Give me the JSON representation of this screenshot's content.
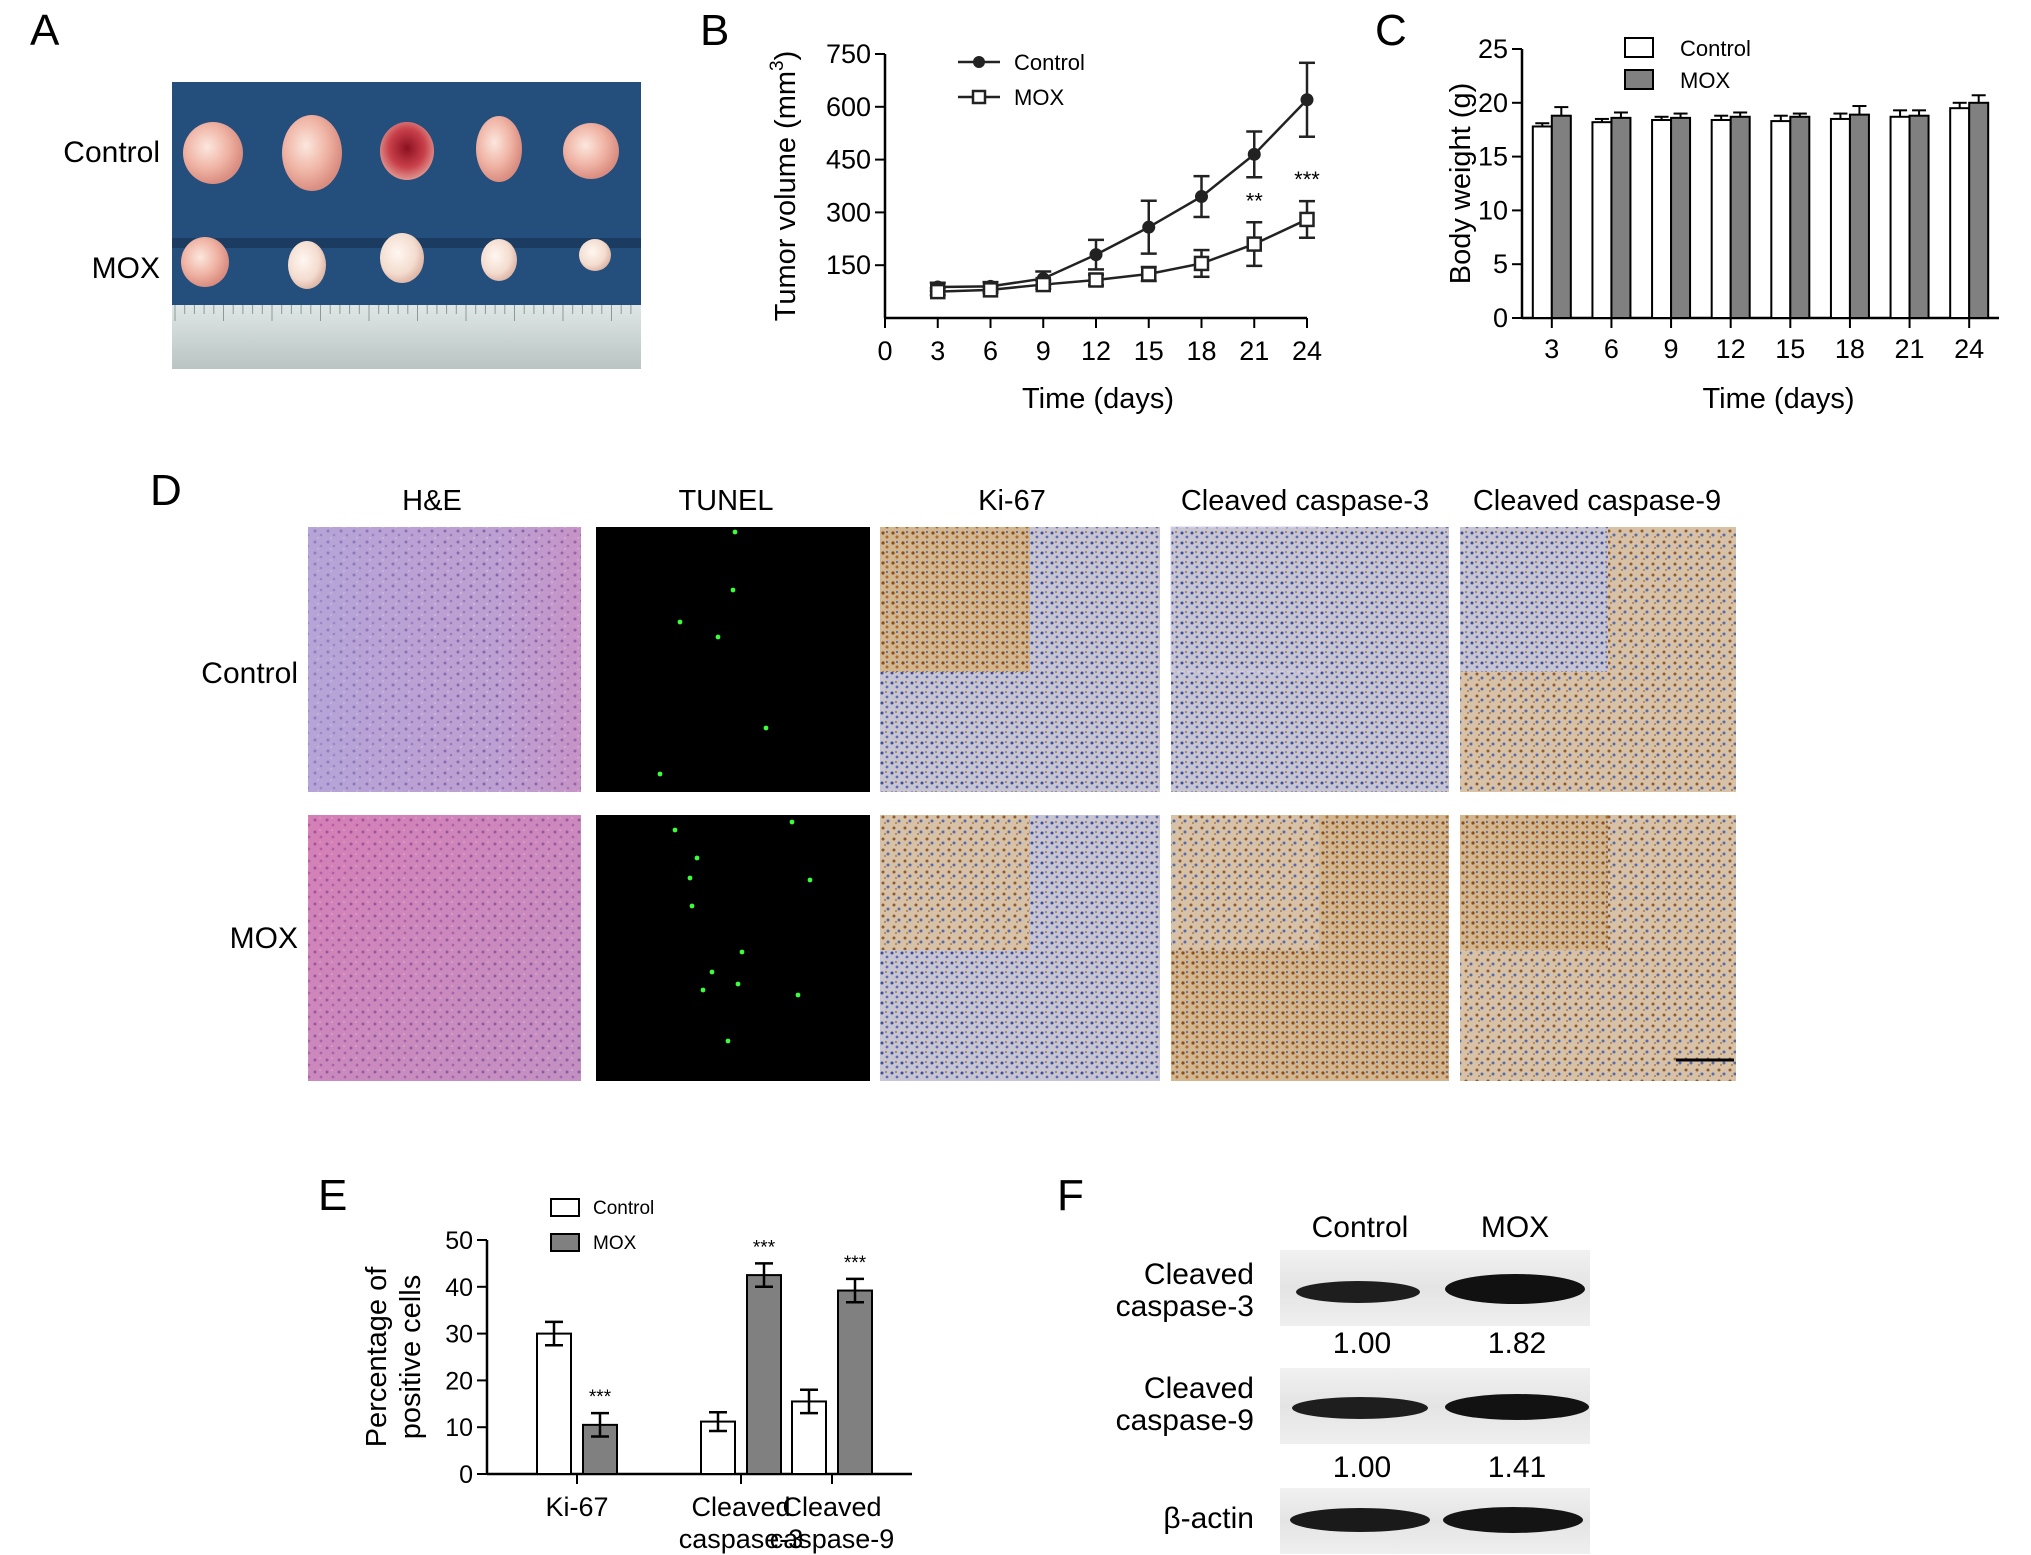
{
  "panels": {
    "a": {
      "letter": "A",
      "rows": [
        "Control",
        "MOX"
      ]
    },
    "b": {
      "letter": "B"
    },
    "c": {
      "letter": "C"
    },
    "d": {
      "letter": "D",
      "columns": [
        "H&E",
        "TUNEL",
        "Ki-67",
        "Cleaved caspase-3",
        "Cleaved caspase-9"
      ],
      "rows": [
        "Control",
        "MOX"
      ]
    },
    "e": {
      "letter": "E"
    },
    "f": {
      "letter": "F",
      "lanes": [
        "Control",
        "MOX"
      ],
      "bands": [
        {
          "label": [
            "Cleaved",
            "caspase-3"
          ],
          "values": [
            "1.00",
            "1.82"
          ]
        },
        {
          "label": [
            "Cleaved",
            "caspase-9"
          ],
          "values": [
            "1.00",
            "1.41"
          ]
        },
        {
          "label": [
            "β-actin"
          ],
          "values": []
        }
      ]
    }
  },
  "colors": {
    "control": "#ffffff",
    "mox": "#808080",
    "line": "#2a2a2a",
    "tray": "#244e7c",
    "ruler": "#c9d3d2"
  },
  "chart_data": [
    {
      "id": "b",
      "type": "line",
      "ylabel": "Tumor volume (mm3)",
      "xlabel": "Time (days)",
      "x": [
        3,
        6,
        9,
        12,
        15,
        18,
        21,
        24
      ],
      "xticks": [
        "0",
        "3",
        "6",
        "9",
        "12",
        "15",
        "18",
        "21",
        "24"
      ],
      "yticks": [
        "150",
        "300",
        "450",
        "600",
        "750"
      ],
      "xlim": [
        0,
        24
      ],
      "ylim": [
        0,
        750
      ],
      "series": [
        {
          "name": "Control",
          "marker": "filled-circle",
          "values": [
            88,
            90,
            112,
            180,
            258,
            345,
            465,
            620
          ],
          "errors": [
            12,
            12,
            20,
            42,
            75,
            58,
            65,
            105
          ]
        },
        {
          "name": "MOX",
          "marker": "open-square",
          "values": [
            75,
            80,
            95,
            108,
            125,
            155,
            210,
            280
          ],
          "errors": [
            10,
            8,
            12,
            15,
            20,
            38,
            62,
            52
          ]
        }
      ],
      "annotations": [
        {
          "x": 21,
          "text": "**"
        },
        {
          "x": 24,
          "text": "***"
        }
      ],
      "legend": "top-left"
    },
    {
      "id": "c",
      "type": "bar",
      "ylabel": "Body weight (g)",
      "xlabel": "Time (days)",
      "categories": [
        "3",
        "6",
        "9",
        "12",
        "15",
        "18",
        "21",
        "24"
      ],
      "yticks": [
        "0",
        "5",
        "10",
        "15",
        "20",
        "25"
      ],
      "ylim": [
        0,
        25
      ],
      "series": [
        {
          "name": "Control",
          "values": [
            17.8,
            18.2,
            18.4,
            18.4,
            18.3,
            18.5,
            18.7,
            19.5
          ],
          "errors": [
            0.3,
            0.3,
            0.3,
            0.4,
            0.5,
            0.5,
            0.6,
            0.5
          ]
        },
        {
          "name": "MOX",
          "values": [
            18.8,
            18.6,
            18.6,
            18.7,
            18.7,
            18.9,
            18.8,
            20.0
          ],
          "errors": [
            0.8,
            0.5,
            0.4,
            0.4,
            0.3,
            0.8,
            0.5,
            0.7
          ]
        }
      ],
      "legend": "top"
    },
    {
      "id": "e",
      "type": "bar",
      "ylabel": [
        "Percentage of",
        "positive cells"
      ],
      "categories": [
        [
          "Ki-67"
        ],
        [
          "Cleaved",
          "caspase-3"
        ],
        [
          "Cleaved",
          "caspase-9"
        ]
      ],
      "yticks": [
        "0",
        "10",
        "20",
        "30",
        "40",
        "50"
      ],
      "ylim": [
        0,
        50
      ],
      "series": [
        {
          "name": "Control",
          "values": [
            30,
            11.2,
            15.5
          ],
          "errors": [
            2.5,
            2,
            2.5
          ]
        },
        {
          "name": "MOX",
          "values": [
            10.5,
            42.5,
            39.2
          ],
          "errors": [
            2.5,
            2.5,
            2.5
          ]
        }
      ],
      "annotations": [
        {
          "category": 0,
          "series": "MOX",
          "text": "***"
        },
        {
          "category": 1,
          "series": "MOX",
          "text": "***"
        },
        {
          "category": 2,
          "series": "MOX",
          "text": "***"
        }
      ],
      "legend": "top-left"
    }
  ]
}
